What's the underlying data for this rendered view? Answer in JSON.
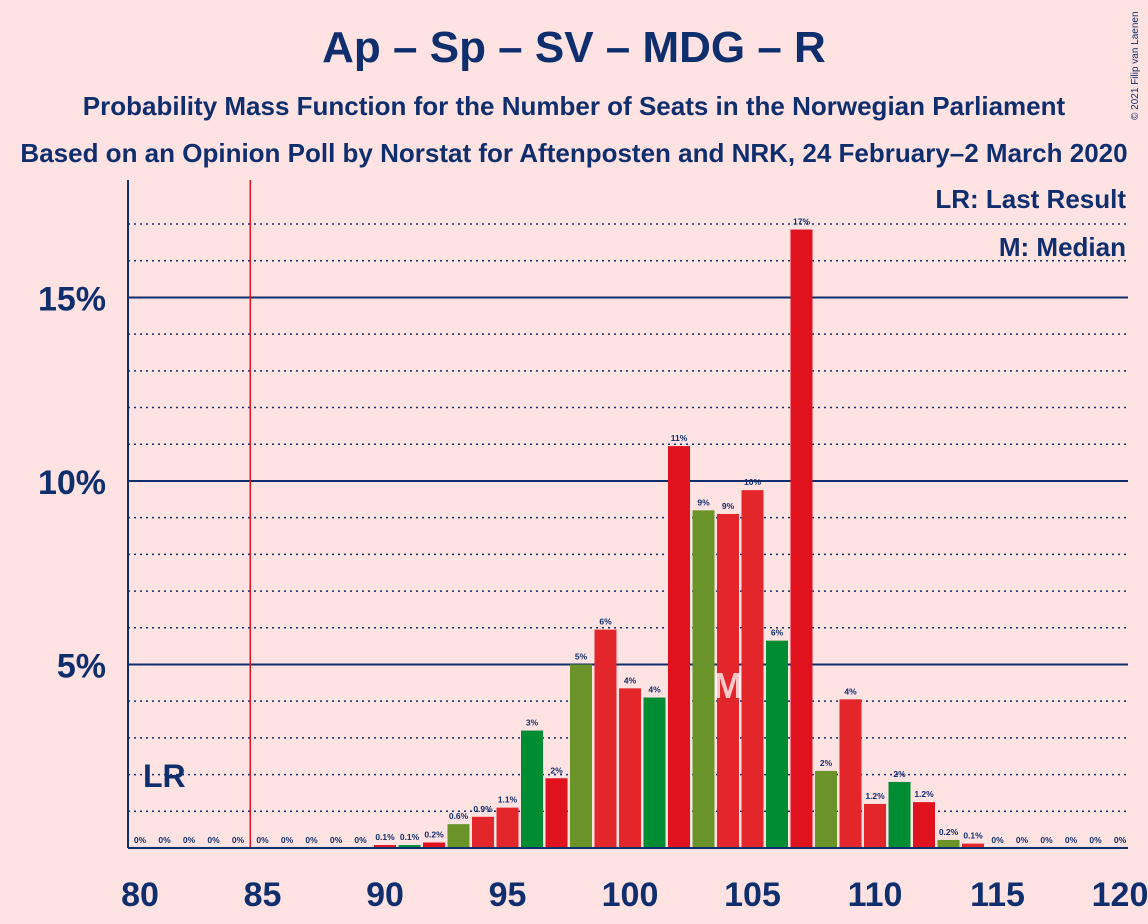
{
  "title": "Ap – Sp – SV – MDG – R",
  "subtitle": "Probability Mass Function for the Number of Seats in the Norwegian Parliament",
  "subtitle2": "Based on an Opinion Poll by Norstat for Aftenposten and NRK, 24 February–2 March 2020",
  "copyright": "© 2021 Filip van Laenen",
  "legend": {
    "last_result": "LR: Last Result",
    "median": "M: Median"
  },
  "markers": {
    "last_result_label": "LR",
    "last_result_x": 84.5,
    "median_label": "M",
    "median_x": 104
  },
  "colors": {
    "red": "#E0121E",
    "green": "#008C32",
    "olive": "#6A9429",
    "red_alt": "#E3262A",
    "axis": "#0E2E6E",
    "lr_line": "#E0121E",
    "background": "#FFE2E2"
  },
  "chart_data": {
    "type": "bar",
    "xlim": [
      80,
      120
    ],
    "ylim": [
      0,
      18.2
    ],
    "xticks": [
      80,
      85,
      90,
      95,
      100,
      105,
      110,
      115,
      120
    ],
    "yticks": [
      {
        "value": 5,
        "label": "5%"
      },
      {
        "value": 10,
        "label": "10%"
      },
      {
        "value": 15,
        "label": "15%"
      }
    ],
    "minor_grid": [
      1,
      2,
      3,
      4,
      6,
      7,
      8,
      9,
      11,
      12,
      13,
      14,
      16,
      17
    ],
    "bars": [
      {
        "x": 80,
        "value": 0,
        "label": "0%",
        "color": "red"
      },
      {
        "x": 81,
        "value": 0,
        "label": "0%",
        "color": "red"
      },
      {
        "x": 82,
        "value": 0,
        "label": "0%",
        "color": "red"
      },
      {
        "x": 83,
        "value": 0,
        "label": "0%",
        "color": "red"
      },
      {
        "x": 84,
        "value": 0,
        "label": "0%",
        "color": "red"
      },
      {
        "x": 85,
        "value": 0,
        "label": "0%",
        "color": "red"
      },
      {
        "x": 86,
        "value": 0,
        "label": "0%",
        "color": "red"
      },
      {
        "x": 87,
        "value": 0,
        "label": "0%",
        "color": "red"
      },
      {
        "x": 88,
        "value": 0,
        "label": "0%",
        "color": "red"
      },
      {
        "x": 89,
        "value": 0,
        "label": "0%",
        "color": "red"
      },
      {
        "x": 90,
        "value": 0.08,
        "label": "0.1%",
        "color": "red"
      },
      {
        "x": 91,
        "value": 0.08,
        "label": "0.1%",
        "color": "green"
      },
      {
        "x": 92,
        "value": 0.15,
        "label": "0.2%",
        "color": "red"
      },
      {
        "x": 93,
        "value": 0.65,
        "label": "0.6%",
        "color": "olive"
      },
      {
        "x": 94,
        "value": 0.85,
        "label": "0.9%",
        "color": "red_alt"
      },
      {
        "x": 95,
        "value": 1.1,
        "label": "1.1%",
        "color": "red_alt"
      },
      {
        "x": 96,
        "value": 3.2,
        "label": "3%",
        "color": "green"
      },
      {
        "x": 97,
        "value": 1.9,
        "label": "2%",
        "color": "red"
      },
      {
        "x": 98,
        "value": 5.0,
        "label": "5%",
        "color": "olive"
      },
      {
        "x": 99,
        "value": 5.95,
        "label": "6%",
        "color": "red_alt"
      },
      {
        "x": 100,
        "value": 4.35,
        "label": "4%",
        "color": "red_alt"
      },
      {
        "x": 101,
        "value": 4.1,
        "label": "4%",
        "color": "green"
      },
      {
        "x": 102,
        "value": 10.95,
        "label": "11%",
        "color": "red"
      },
      {
        "x": 103,
        "value": 9.2,
        "label": "9%",
        "color": "olive"
      },
      {
        "x": 104,
        "value": 9.1,
        "label": "9%",
        "color": "red_alt"
      },
      {
        "x": 105,
        "value": 9.75,
        "label": "10%",
        "color": "red_alt"
      },
      {
        "x": 106,
        "value": 5.65,
        "label": "6%",
        "color": "green"
      },
      {
        "x": 107,
        "value": 16.85,
        "label": "17%",
        "color": "red"
      },
      {
        "x": 108,
        "value": 2.1,
        "label": "2%",
        "color": "olive"
      },
      {
        "x": 109,
        "value": 4.05,
        "label": "4%",
        "color": "red_alt"
      },
      {
        "x": 110,
        "value": 1.2,
        "label": "1.2%",
        "color": "red_alt"
      },
      {
        "x": 111,
        "value": 1.8,
        "label": "2%",
        "color": "green"
      },
      {
        "x": 112,
        "value": 1.25,
        "label": "1.2%",
        "color": "red"
      },
      {
        "x": 113,
        "value": 0.22,
        "label": "0.2%",
        "color": "olive"
      },
      {
        "x": 114,
        "value": 0.12,
        "label": "0.1%",
        "color": "red_alt"
      },
      {
        "x": 115,
        "value": 0,
        "label": "0%",
        "color": "red"
      },
      {
        "x": 116,
        "value": 0,
        "label": "0%",
        "color": "red"
      },
      {
        "x": 117,
        "value": 0,
        "label": "0%",
        "color": "red"
      },
      {
        "x": 118,
        "value": 0,
        "label": "0%",
        "color": "red"
      },
      {
        "x": 119,
        "value": 0,
        "label": "0%",
        "color": "red"
      },
      {
        "x": 120,
        "value": 0,
        "label": "0%",
        "color": "red"
      }
    ]
  }
}
